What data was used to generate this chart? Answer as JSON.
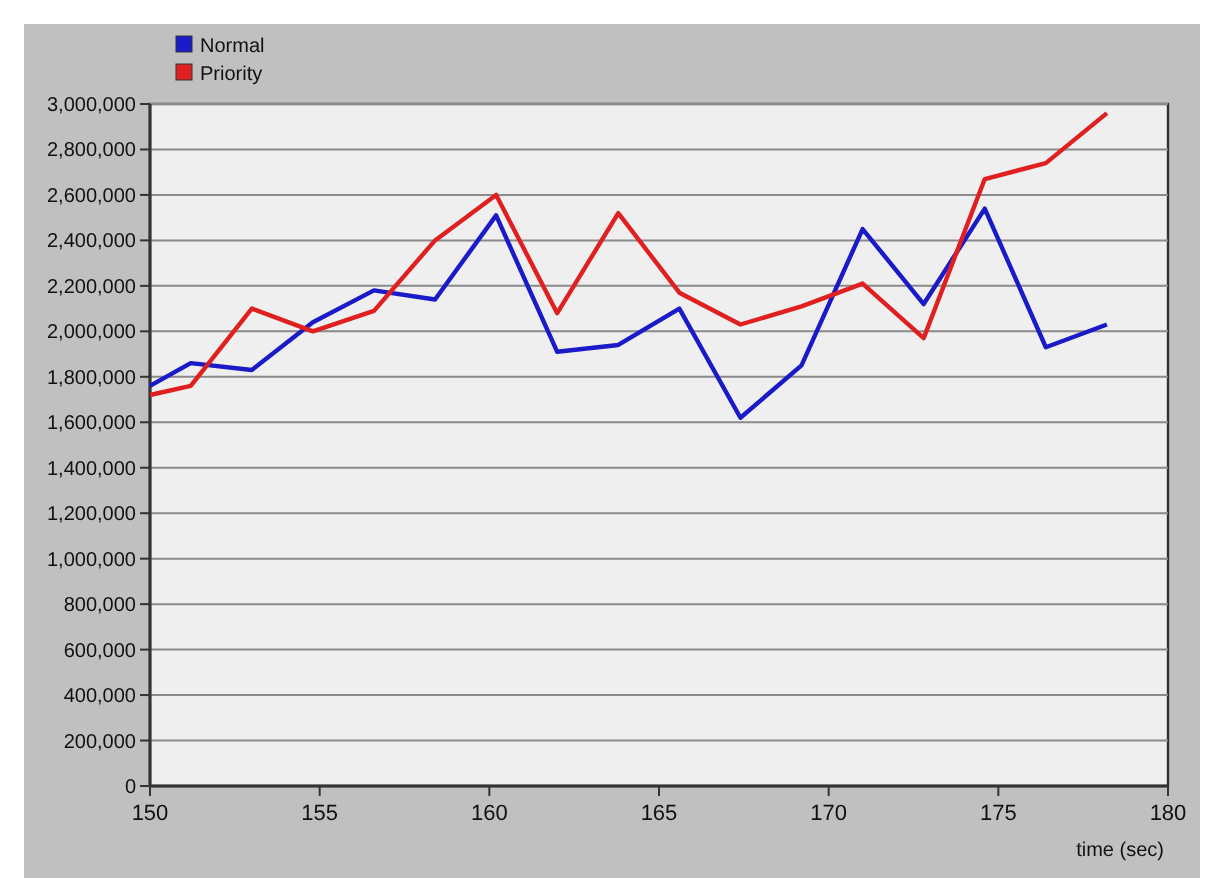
{
  "chart_data": {
    "type": "line",
    "xlabel": "time (sec)",
    "x": [
      150,
      151.2,
      153,
      154.8,
      156.6,
      158.4,
      160.2,
      162,
      163.8,
      165.6,
      167.4,
      169.2,
      171,
      172.8,
      174.6,
      176.4,
      178.2
    ],
    "series": [
      {
        "name": "Normal",
        "color": "#1a1ac8",
        "values": [
          1760000,
          1860000,
          1830000,
          2040000,
          2180000,
          2140000,
          2510000,
          1910000,
          1940000,
          2100000,
          1620000,
          1850000,
          2450000,
          2120000,
          2540000,
          1930000,
          2030000
        ]
      },
      {
        "name": "Priority",
        "color": "#e02020",
        "values": [
          1720000,
          1760000,
          2100000,
          2000000,
          2090000,
          2400000,
          2600000,
          2080000,
          2520000,
          2170000,
          2030000,
          2110000,
          2210000,
          1970000,
          2670000,
          2740000,
          2960000
        ]
      }
    ],
    "xlim": [
      150,
      180
    ],
    "xticks": [
      150,
      155,
      160,
      165,
      170,
      175,
      180
    ],
    "ylim": [
      0,
      3000000
    ],
    "yticks": [
      {
        "value": 0,
        "label": "0"
      },
      {
        "value": 200000,
        "label": "200,000"
      },
      {
        "value": 400000,
        "label": "400,000"
      },
      {
        "value": 600000,
        "label": "600,000"
      },
      {
        "value": 800000,
        "label": "800,000"
      },
      {
        "value": 1000000,
        "label": "1,000,000"
      },
      {
        "value": 1200000,
        "label": "1,200,000"
      },
      {
        "value": 1400000,
        "label": "1,400,000"
      },
      {
        "value": 1600000,
        "label": "1,600,000"
      },
      {
        "value": 1800000,
        "label": "1,800,000"
      },
      {
        "value": 2000000,
        "label": "2,000,000"
      },
      {
        "value": 2200000,
        "label": "2,200,000"
      },
      {
        "value": 2400000,
        "label": "2,400,000"
      },
      {
        "value": 2600000,
        "label": "2,600,000"
      },
      {
        "value": 2800000,
        "label": "2,800,000"
      },
      {
        "value": 3000000,
        "label": "3,000,000"
      }
    ],
    "grid": "y",
    "legend": "top left",
    "marker": "none",
    "line_style": "solid"
  }
}
